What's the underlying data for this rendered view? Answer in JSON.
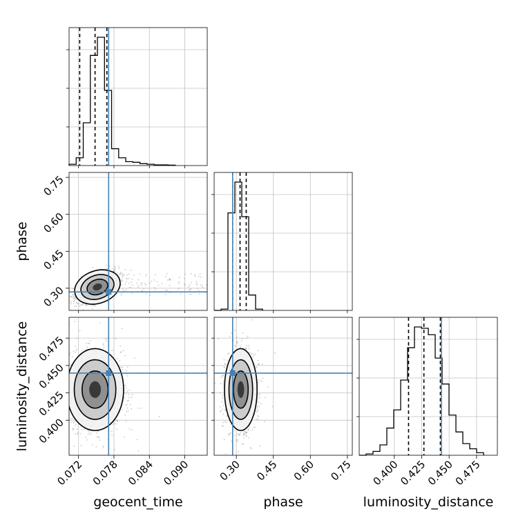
{
  "chart_data": {
    "type": "corner",
    "parameters": [
      "geocent_time",
      "phase",
      "luminosity_distance"
    ],
    "axis_labels": [
      "geocent_time",
      "phase",
      "luminosity_distance"
    ],
    "ranges": {
      "geocent_time": [
        0.0704,
        0.0938
      ],
      "phase": [
        0.21,
        0.77
      ],
      "luminosity_distance": [
        0.368,
        0.494
      ]
    },
    "ticks": {
      "geocent_time": [
        0.072,
        0.078,
        0.084,
        0.09
      ],
      "phase": [
        0.3,
        0.45,
        0.6,
        0.75
      ],
      "luminosity_distance": [
        0.4,
        0.425,
        0.45,
        0.475
      ]
    },
    "tick_labels": {
      "geocent_time": [
        "0.072",
        "0.078",
        "0.084",
        "0.090"
      ],
      "phase": [
        "0.30",
        "0.45",
        "0.60",
        "0.75"
      ],
      "luminosity_distance": [
        "0.400",
        "0.425",
        "0.450",
        "0.475"
      ]
    },
    "truths": {
      "geocent_time": 0.0771,
      "phase": 0.285,
      "luminosity_distance": 0.443
    },
    "quantiles": {
      "geocent_time": [
        0.0722,
        0.0748,
        0.0768
      ],
      "phase": [
        0.285,
        0.315,
        0.34
      ],
      "luminosity_distance": [
        0.413,
        0.427,
        0.442
      ]
    },
    "histograms": {
      "geocent_time": {
        "edges": [
          0.0704,
          0.0716,
          0.0728,
          0.074,
          0.0752,
          0.0764,
          0.0776,
          0.0788,
          0.08,
          0.0812,
          0.0824,
          0.0836,
          0.0848,
          0.086,
          0.0872,
          0.0884
        ],
        "counts": [
          0.01,
          0.06,
          0.33,
          0.85,
          0.99,
          0.58,
          0.13,
          0.06,
          0.03,
          0.025,
          0.015,
          0.01,
          0.005,
          0.005,
          0.003
        ]
      },
      "phase": {
        "edges": [
          0.21,
          0.238,
          0.266,
          0.294,
          0.322,
          0.35,
          0.378,
          0.406
        ],
        "counts": [
          0.0,
          0.01,
          0.76,
          1.0,
          0.73,
          0.12,
          0.01
        ]
      },
      "luminosity_distance": {
        "edges": [
          0.368,
          0.3743,
          0.3806,
          0.3869,
          0.3932,
          0.3995,
          0.4058,
          0.4121,
          0.4184,
          0.4247,
          0.431,
          0.4373,
          0.4436,
          0.4499,
          0.4562,
          0.4625,
          0.4688,
          0.4751,
          0.4814
        ],
        "counts": [
          0.0,
          0.01,
          0.03,
          0.08,
          0.21,
          0.35,
          0.58,
          0.83,
          0.99,
          0.98,
          0.93,
          0.75,
          0.55,
          0.31,
          0.18,
          0.09,
          0.05,
          0.02
        ]
      }
    },
    "scatter": {
      "geocent_time_vs_phase": {
        "center": [
          0.0752,
          0.305
        ],
        "spread": [
          0.0018,
          0.03
        ],
        "correlation": 0.5,
        "tail_x": [
          0.078,
          0.0938
        ],
        "tail_y": [
          0.27,
          0.36
        ]
      },
      "geocent_time_vs_luminosity_distance": {
        "center": [
          0.0748,
          0.428
        ],
        "spread": [
          0.0022,
          0.017
        ]
      },
      "phase_vs_luminosity_distance": {
        "center": [
          0.318,
          0.428
        ],
        "spread": [
          0.03,
          0.017
        ]
      }
    },
    "grid": true,
    "colors": {
      "histogram": "#000000",
      "truth": "#4682b4",
      "quantile": "#000000",
      "scatter": "#808080",
      "grid": "#c0c0c0"
    }
  }
}
